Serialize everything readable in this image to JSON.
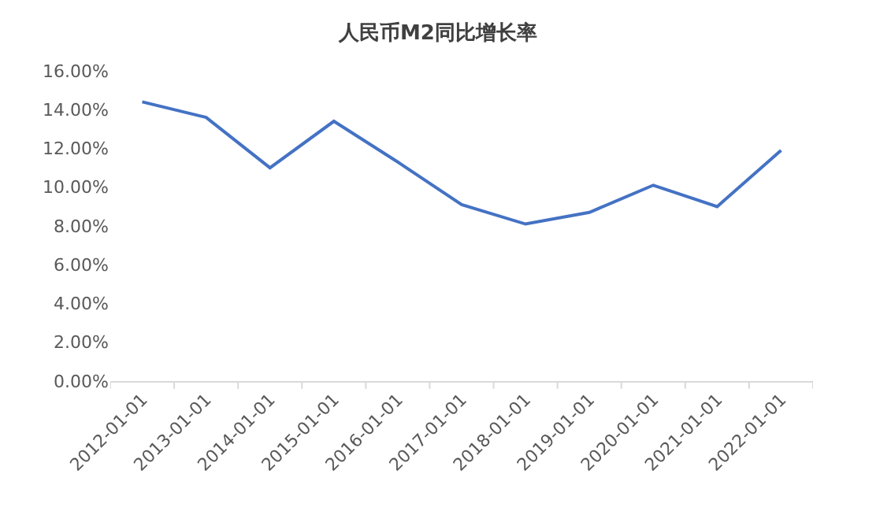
{
  "chart_data": {
    "type": "line",
    "title": "人民币M2同比增长率",
    "categories": [
      "2012-01-01",
      "2013-01-01",
      "2014-01-01",
      "2015-01-01",
      "2016-01-01",
      "2017-01-01",
      "2018-01-01",
      "2019-01-01",
      "2020-01-01",
      "2021-01-01",
      "2022-01-01"
    ],
    "series": [
      {
        "color": "#4472c4",
        "values": [
          14.4,
          13.6,
          11.0,
          13.4,
          11.3,
          9.1,
          8.1,
          8.7,
          10.1,
          9.0,
          11.9
        ]
      }
    ],
    "ylim": [
      0,
      16
    ],
    "yticks": [
      {
        "value": 0,
        "label": "0.00%"
      },
      {
        "value": 2,
        "label": "2.00%"
      },
      {
        "value": 4,
        "label": "4.00%"
      },
      {
        "value": 6,
        "label": "6.00%"
      },
      {
        "value": 8,
        "label": "8.00%"
      },
      {
        "value": 10,
        "label": "10.00%"
      },
      {
        "value": 12,
        "label": "12.00%"
      },
      {
        "value": 14,
        "label": "14.00%"
      },
      {
        "value": 16,
        "label": "16.00%"
      }
    ],
    "grid": false,
    "marker": "none",
    "line_style": "solid"
  }
}
